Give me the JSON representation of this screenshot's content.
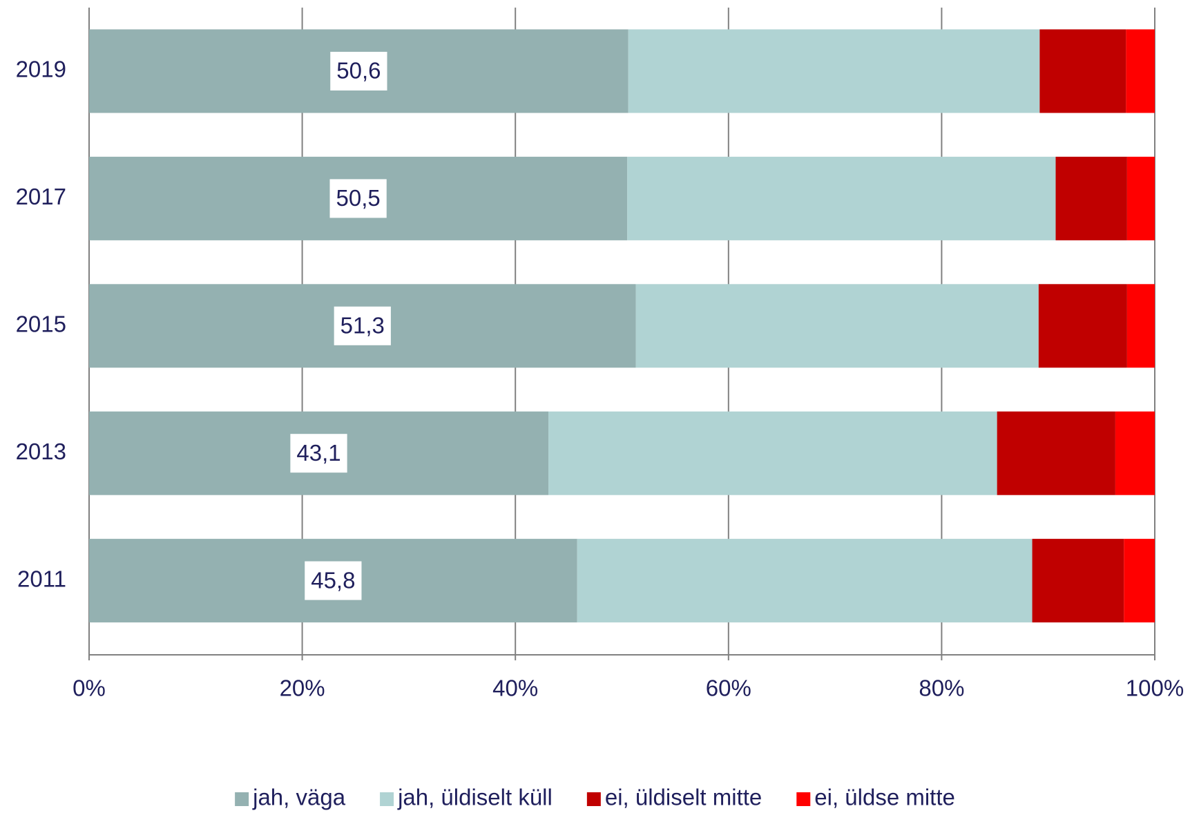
{
  "chart_data": {
    "type": "stacked-bar-horizontal",
    "categories": [
      "2019",
      "2017",
      "2015",
      "2013",
      "2011"
    ],
    "series": [
      {
        "name": "jah, väga",
        "color": "#94b1b1",
        "values": [
          50.6,
          50.5,
          51.3,
          43.1,
          45.8
        ],
        "value_labels": [
          "50,6",
          "50,5",
          "51,3",
          "43,1",
          "45,8"
        ]
      },
      {
        "name": "jah, üldiselt küll",
        "color": "#b0d3d3",
        "values": [
          38.6,
          40.2,
          37.8,
          42.1,
          42.7
        ]
      },
      {
        "name": "ei, üldiselt mitte",
        "color": "#c00000",
        "values": [
          8.1,
          6.7,
          8.3,
          11.1,
          8.6
        ]
      },
      {
        "name": "ei, üldse mitte",
        "color": "#ff0000",
        "values": [
          2.7,
          2.6,
          2.6,
          3.7,
          2.9
        ]
      }
    ],
    "xlim": [
      0,
      100
    ],
    "xticks": [
      {
        "value": 0,
        "label": "0%"
      },
      {
        "value": 20,
        "label": "20%"
      },
      {
        "value": 40,
        "label": "40%"
      },
      {
        "value": 60,
        "label": "60%"
      },
      {
        "value": 80,
        "label": "80%"
      },
      {
        "value": 100,
        "label": "100%"
      }
    ],
    "grid": true,
    "legend": "bottom"
  }
}
